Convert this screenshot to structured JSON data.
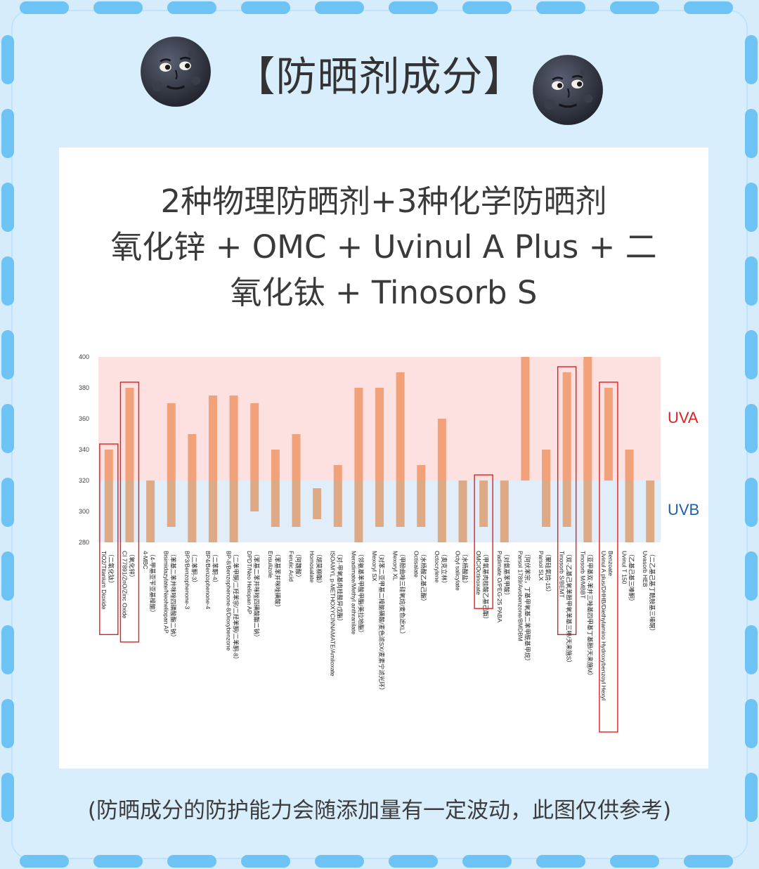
{
  "header": {
    "title": "【防晒剂成分】"
  },
  "card": {
    "title_lines": [
      "2种物理防晒剂+3种化学防晒剂",
      "氧化锌 + OMC + Uvinul A Plus + 二",
      "氧化钛 + Tinosorb S"
    ]
  },
  "footer": {
    "note": "(防晒成分的防护能力会随添加量有一定波动，此图仅供参考)"
  },
  "chart_data": {
    "type": "bar",
    "subtype": "floating-range",
    "ylim": [
      280,
      400
    ],
    "yticks": [
      280,
      300,
      320,
      340,
      360,
      380,
      400
    ],
    "grid": false,
    "bands": [
      {
        "name": "UVA",
        "range": [
          320,
          400
        ],
        "color": "#fde0e0",
        "label_color": "#e02020"
      },
      {
        "name": "UVB",
        "range": [
          280,
          320
        ],
        "color": "#e1edf8",
        "label_color": "#1f5fa8"
      }
    ],
    "colors": {
      "upper": "#f2a27a",
      "lower": "#deaa86",
      "highlight": "#e02020"
    },
    "categories": [
      {
        "label": [
          "TiO2/Titanium Dioxide",
          "（二氧化钛）"
        ],
        "range": [
          280,
          340
        ],
        "highlight": true
      },
      {
        "label": [
          "CI 77891/ZnO/Zinc Oxide",
          "（氧化锌）"
        ],
        "range": [
          280,
          380
        ],
        "highlight": true
      },
      {
        "label": [
          "4-MBC",
          "（4-甲基亚苄亚基樟脑）"
        ],
        "range": [
          280,
          320
        ],
        "highlight": false
      },
      {
        "label": [
          "Bisimidazylate/Neoheliopan AP",
          "（苯基二苯并咪唑四磺酸酯二钠）"
        ],
        "range": [
          290,
          370
        ],
        "highlight": false
      },
      {
        "label": [
          "BP3/Benzophenone-3",
          "（二苯酮-3）"
        ],
        "range": [
          280,
          350
        ],
        "highlight": false
      },
      {
        "label": [
          "BP4/Benzophenone-4",
          "（二苯酮-4）"
        ],
        "range": [
          280,
          375
        ],
        "highlight": false
      },
      {
        "label": [
          "BP-8/Benzophenone-8/Dioxybenzone",
          "（二苯甲酮/二羟苯宗/二羟苯酮/二苯酮-8）"
        ],
        "range": [
          280,
          375
        ],
        "highlight": false
      },
      {
        "label": [
          "DPDT/Neo Heliopan AP",
          "（苯基二苯并咪唑四磺酸酯二钠）"
        ],
        "range": [
          300,
          370
        ],
        "highlight": false
      },
      {
        "label": [
          "Ensulizole",
          "（苯基苯并咪唑磺酸）"
        ],
        "range": [
          290,
          340
        ],
        "highlight": false
      },
      {
        "label": [
          "Ferulic Acid",
          "（阿魏酸）"
        ],
        "range": [
          290,
          350
        ],
        "highlight": false
      },
      {
        "label": [
          "Homosalate",
          "（胡莫柳酯）"
        ],
        "range": [
          295,
          315
        ],
        "highlight": false
      },
      {
        "label": [
          "ISOAMYL p-METHOXYCINNAMATE/Amiloxate",
          "（对-甲氧基肉桂酸异戊酯）"
        ],
        "range": [
          290,
          330
        ],
        "highlight": false
      },
      {
        "label": [
          "Meradimate/Methyl anthranilate",
          "（邻氨基苯甲酸甲酯/美拉地酯）"
        ],
        "range": [
          280,
          380
        ],
        "highlight": false
      },
      {
        "label": [
          "Mexoryl SX",
          "（对苯二亚甲基二樟脑磺酸/麦色滤SX/麦素宁滤光环）"
        ],
        "range": [
          290,
          380
        ],
        "highlight": false
      },
      {
        "label": [
          "Mexoryl XL",
          "（甲酚曲唑三硅氧烷/麦色滤XL）"
        ],
        "range": [
          290,
          390
        ],
        "highlight": false
      },
      {
        "label": [
          "Octisalate",
          "（水杨酸乙基己酯）"
        ],
        "range": [
          290,
          330
        ],
        "highlight": false
      },
      {
        "label": [
          "Octocrylene",
          "（奥克立林）"
        ],
        "range": [
          280,
          360
        ],
        "highlight": false
      },
      {
        "label": [
          "Octyl salicylate",
          "（水杨酸盐）"
        ],
        "range": [
          280,
          320
        ],
        "highlight": false
      },
      {
        "label": [
          "OMC/Octinoxate",
          "（甲氧基肉桂酸乙基己酯）"
        ],
        "range": [
          290,
          320
        ],
        "highlight": true
      },
      {
        "label": [
          "Padimate O/PEG-25 PABA",
          "（对氨基苯甲酸）"
        ],
        "range": [
          280,
          320
        ],
        "highlight": false
      },
      {
        "label": [
          "Parsol 1789/Avobenzone/BMDBM",
          "（阿伏苯宗，丁基甲氧基二苯甲酰基甲烷）"
        ],
        "range": [
          320,
          400
        ],
        "highlight": false
      },
      {
        "label": [
          "Parsol SLX",
          "（聚硅氧烷-15）"
        ],
        "range": [
          290,
          340
        ],
        "highlight": false
      },
      {
        "label": [
          "Tinosorb S/BEMT",
          "（双-乙基己氧苯酚甲氧苯基三嗪/天来施S）"
        ],
        "range": [
          290,
          390
        ],
        "highlight": true
      },
      {
        "label": [
          "Tinosorb M/MBBT",
          "（亚甲基双-苯并三唑基四甲基丁基酚/天来施M）"
        ],
        "range": [
          280,
          400
        ],
        "highlight": false
      },
      {
        "label": [
          "Uvinul A plus/DHHB/Diethylamino Hydroxybenzoyl Hexyl",
          "Benzoate"
        ],
        "range": [
          320,
          380
        ],
        "highlight": true
      },
      {
        "label": [
          "Uvinul T 150",
          "（乙基己基三嗪酮）"
        ],
        "range": [
          280,
          340
        ],
        "highlight": false
      },
      {
        "label": [
          "Uvasorb HEB",
          "（二乙基己基丁酰胺基三嗪酮）"
        ],
        "range": [
          280,
          320
        ],
        "highlight": false
      }
    ]
  }
}
